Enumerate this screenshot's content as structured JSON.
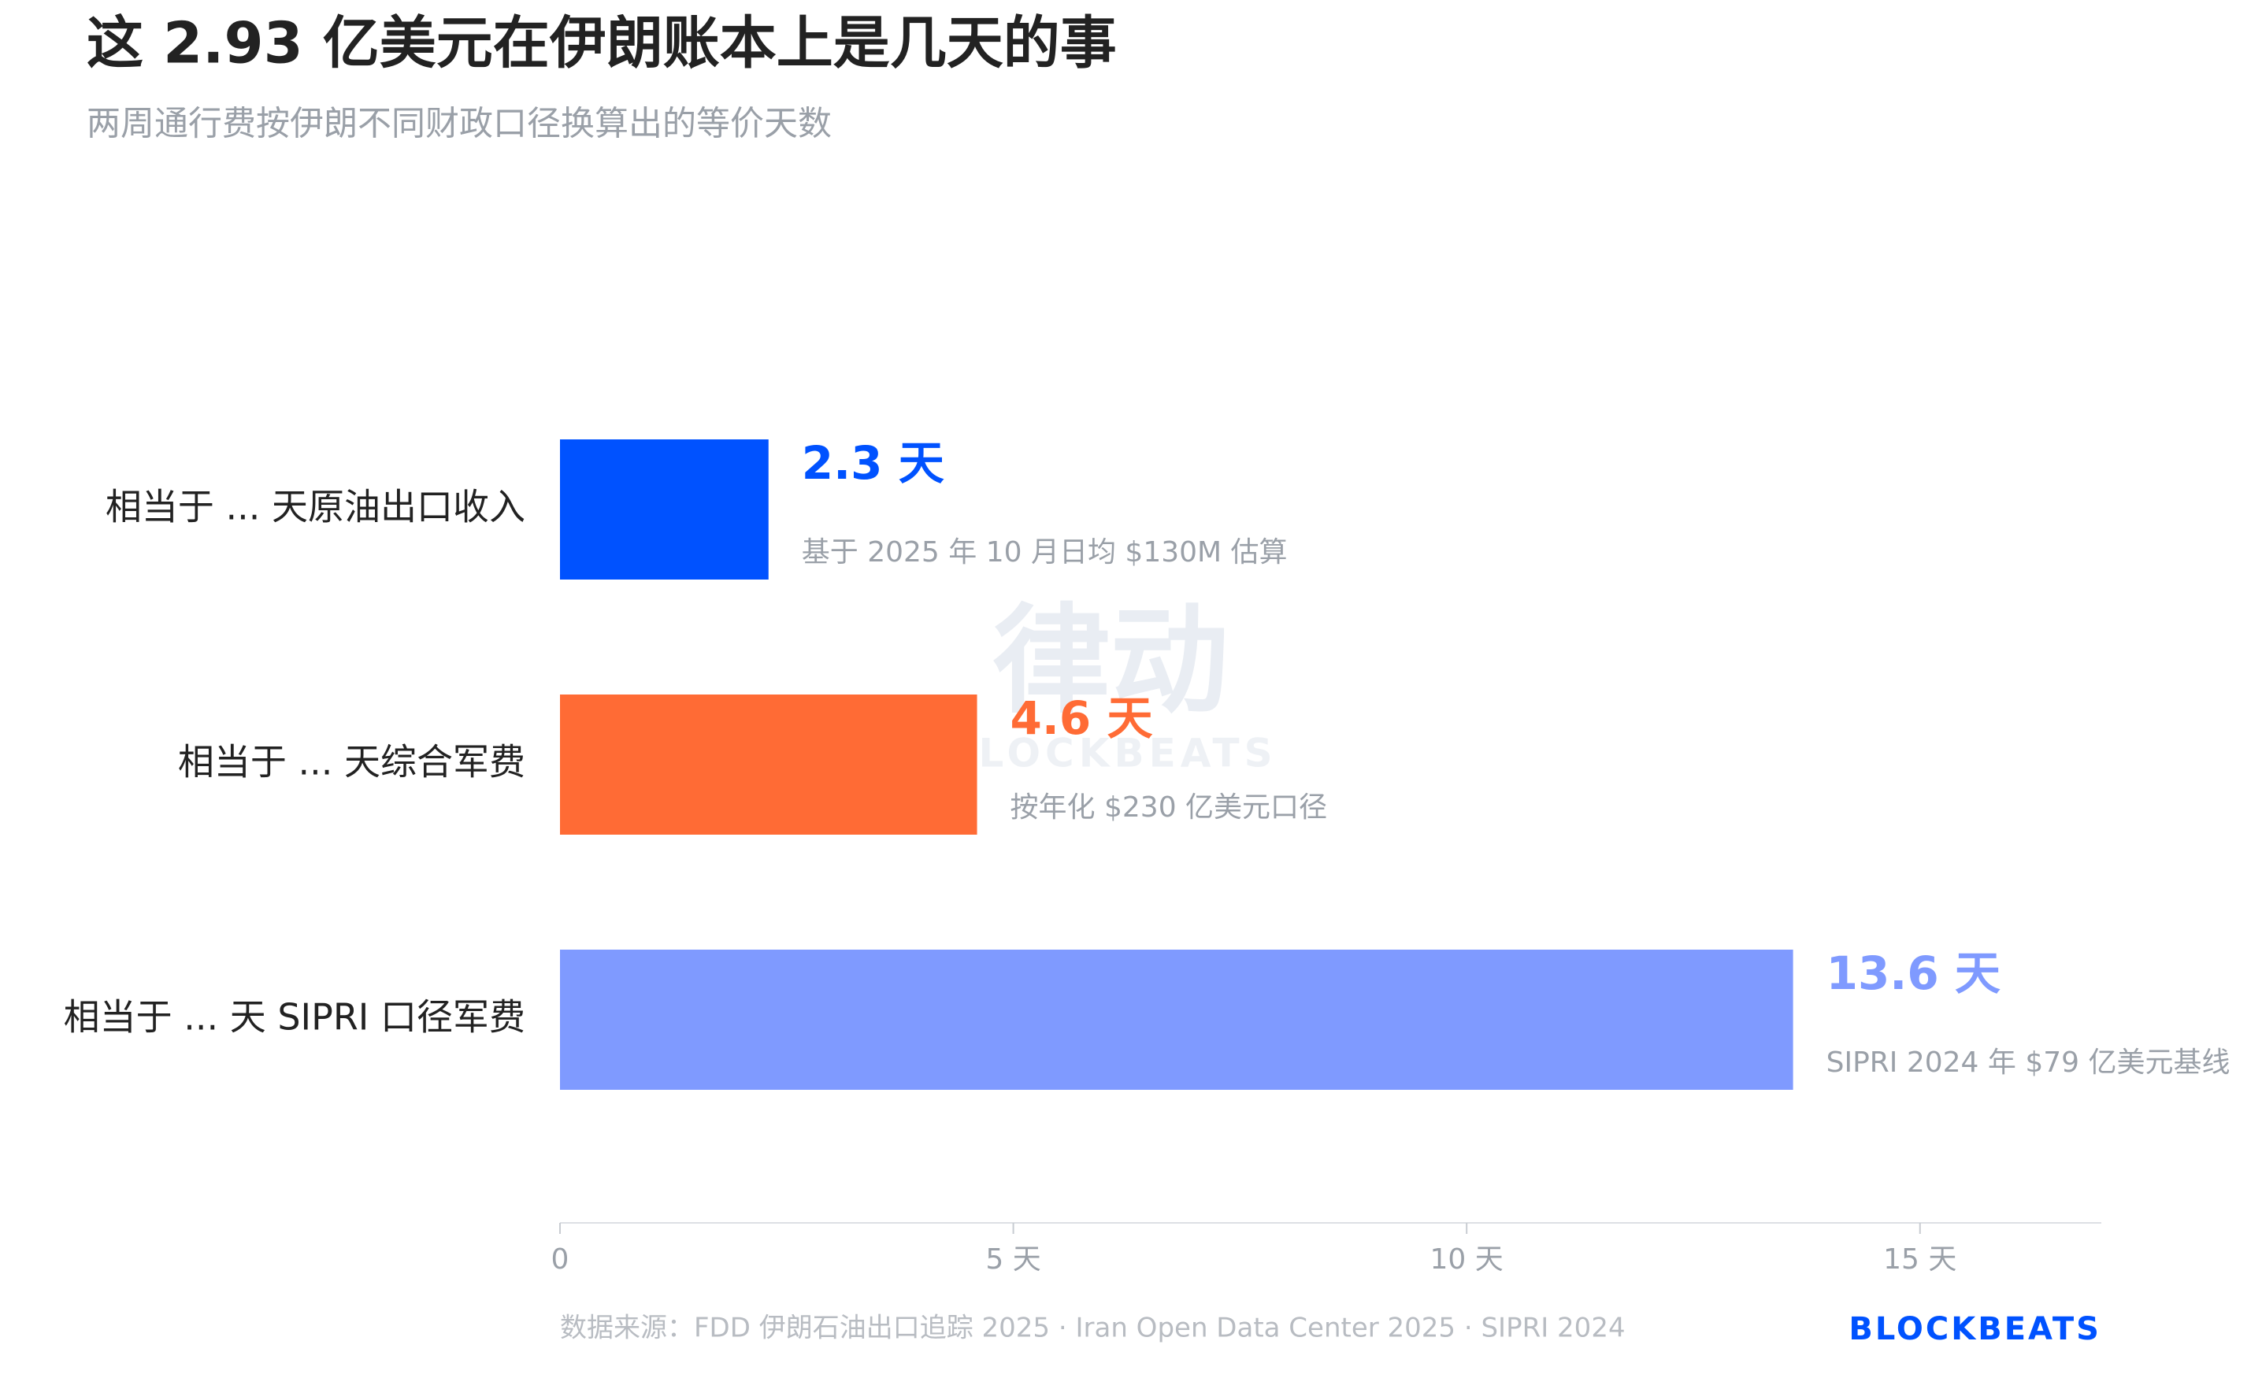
{
  "chart_data": {
    "type": "barh",
    "title": "这 2.93 亿美元在伊朗账本上是几天的事",
    "subtitle": "两周通行费按伊朗不同财政口径换算出的等价天数",
    "categories": [
      "相当于 ... 天原油出口收入",
      "相当于 ... 天综合军费",
      "相当于 ... 天 SIPRI 口径军费"
    ],
    "values": [
      2.3,
      4.6,
      13.6
    ],
    "value_labels": [
      "2.3 天",
      "4.6 天",
      "13.6 天"
    ],
    "annotations": [
      "基于 2025 年 10 月日均 $130M 估算",
      "按年化 $230 亿美元口径",
      "SIPRI 2024 年 $79 亿美元基线"
    ],
    "colors": [
      "#0052ff",
      "#ff6b35",
      "#7f9aff"
    ],
    "xlim": [
      0,
      17
    ],
    "xticks": [
      0,
      {
        "value": 5,
        "label": "5 天"
      },
      {
        "value": 10,
        "label": "10 天"
      },
      {
        "value": 15,
        "label": "15 天"
      }
    ],
    "grid": false,
    "source": "数据来源：FDD 伊朗石油出口追踪 2025 · Iran Open Data Center 2025 · SIPRI 2024",
    "logo": "BLOCKBEATS",
    "watermark": [
      "律动",
      "BLOCKBEATS"
    ]
  }
}
